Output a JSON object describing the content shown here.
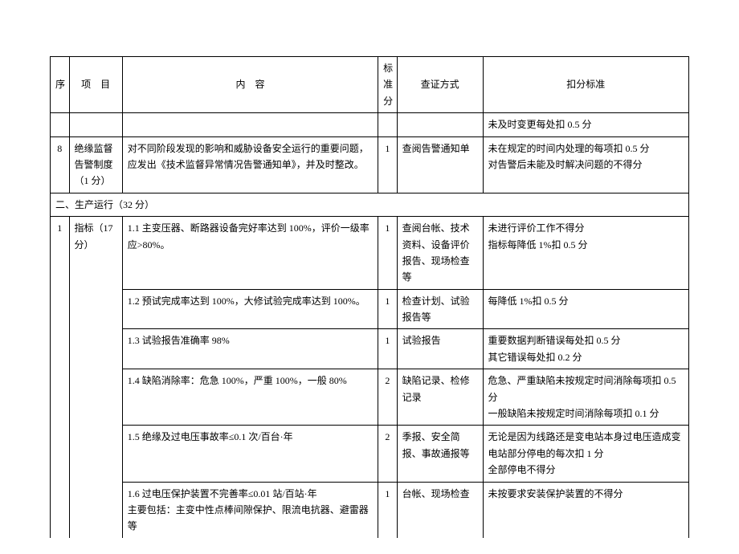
{
  "header": {
    "seq": "序",
    "item": "项　目",
    "content": "内　容",
    "score": "标准分",
    "verify": "查证方式",
    "deduct": "扣分标准"
  },
  "rows": [
    {
      "seq": "",
      "item": "",
      "content": "",
      "score": "",
      "verify": "",
      "deduct": "未及时变更每处扣 0.5 分"
    },
    {
      "seq": "8",
      "item": "绝缘监督告警制度（1 分）",
      "content": "对不同阶段发现的影响和威胁设备安全运行的重要问题，应发出《技术监督异常情况告警通知单》，并及时整改。",
      "score": "1",
      "verify": "查阅告警通知单",
      "deduct": "未在规定的时间内处理的每项扣 0.5 分\n对告警后未能及时解决问题的不得分"
    }
  ],
  "section2": "二、生产运行（32 分）",
  "section2rows": [
    {
      "seq": "1",
      "item": "指标（17 分）",
      "content": "1.1 主变压器、断路器设备完好率达到 100%，评价一级率应>80%。",
      "score": "1",
      "verify": "查阅台帐、技术资料、设备评价报告、现场检查等",
      "deduct": "未进行评价工作不得分\n指标每降低 1%扣 0.5 分"
    },
    {
      "content": "1.2 预试完成率达到 100%，大修试验完成率达到 100%。",
      "score": "1",
      "verify": "检查计划、试验报告等",
      "deduct": "每降低 1%扣 0.5 分"
    },
    {
      "content": "1.3 试验报告准确率 98%",
      "score": "1",
      "verify": "试验报告",
      "deduct": "重要数据判断错误每处扣 0.5 分\n其它错误每处扣 0.2 分"
    },
    {
      "content": "1.4 缺陷消除率：危急 100%，严重 100%，一般 80%",
      "score": "2",
      "verify": "缺陷记录、检修记录",
      "deduct": "危急、严重缺陷未按规定时间消除每项扣 0.5 分\n一般缺陷未按规定时间消除每项扣 0.1 分"
    },
    {
      "content": "1.5 绝缘及过电压事故率≤0.1 次/百台·年",
      "score": "2",
      "verify": "季报、安全简报、事故通报等",
      "deduct": "无论是因为线路还是变电站本身过电压造成变电站部分停电的每次扣 1 分\n全部停电不得分"
    },
    {
      "content": "1.6 过电压保护装置不完善率≤0.01 站/百站·年\n主要包括：主变中性点棒间隙保护、限流电抗器、避雷器等",
      "score": "1",
      "verify": "台帐、现场检查",
      "deduct": "未按要求安装保护装置的不得分"
    }
  ],
  "colors": {
    "text": "#000000",
    "border": "#000000",
    "background": "#ffffff"
  },
  "font_size_pt": 9
}
